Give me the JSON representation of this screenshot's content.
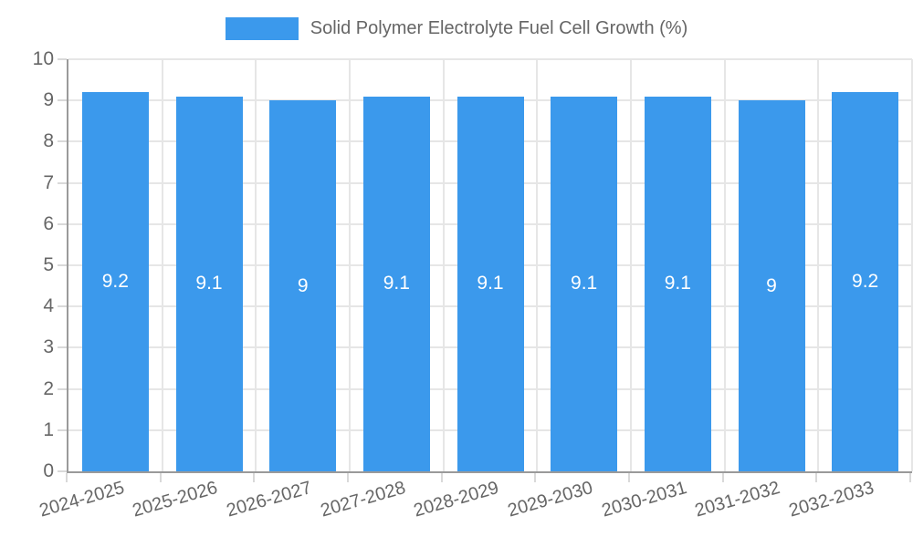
{
  "chart_data": {
    "type": "bar",
    "title": "Solid Polymer Electrolyte Fuel Cell Growth (%)",
    "legend_position": "top",
    "categories": [
      "2024-2025",
      "2025-2026",
      "2026-2027",
      "2027-2028",
      "2028-2029",
      "2029-2030",
      "2030-2031",
      "2031-2032",
      "2032-2033"
    ],
    "values": [
      9.2,
      9.1,
      9,
      9.1,
      9.1,
      9.1,
      9.1,
      9,
      9.2
    ],
    "value_labels": [
      "9.2",
      "9.1",
      "9",
      "9.1",
      "9.1",
      "9.1",
      "9.1",
      "9",
      "9.2"
    ],
    "xlabel": "",
    "ylabel": "",
    "ylim": [
      0,
      10
    ],
    "y_ticks": [
      0,
      1,
      2,
      3,
      4,
      5,
      6,
      7,
      8,
      9,
      10
    ],
    "grid": "both",
    "x_tick_rotation_deg": -16,
    "colors": {
      "bar": "#3b99ec",
      "value_label": "#ffffff",
      "axis_text": "#666666",
      "grid_line": "#e6e6e6",
      "tick_line": "#d9d9d9",
      "axis_line": "#9a9a9a",
      "background": "#ffffff"
    }
  }
}
